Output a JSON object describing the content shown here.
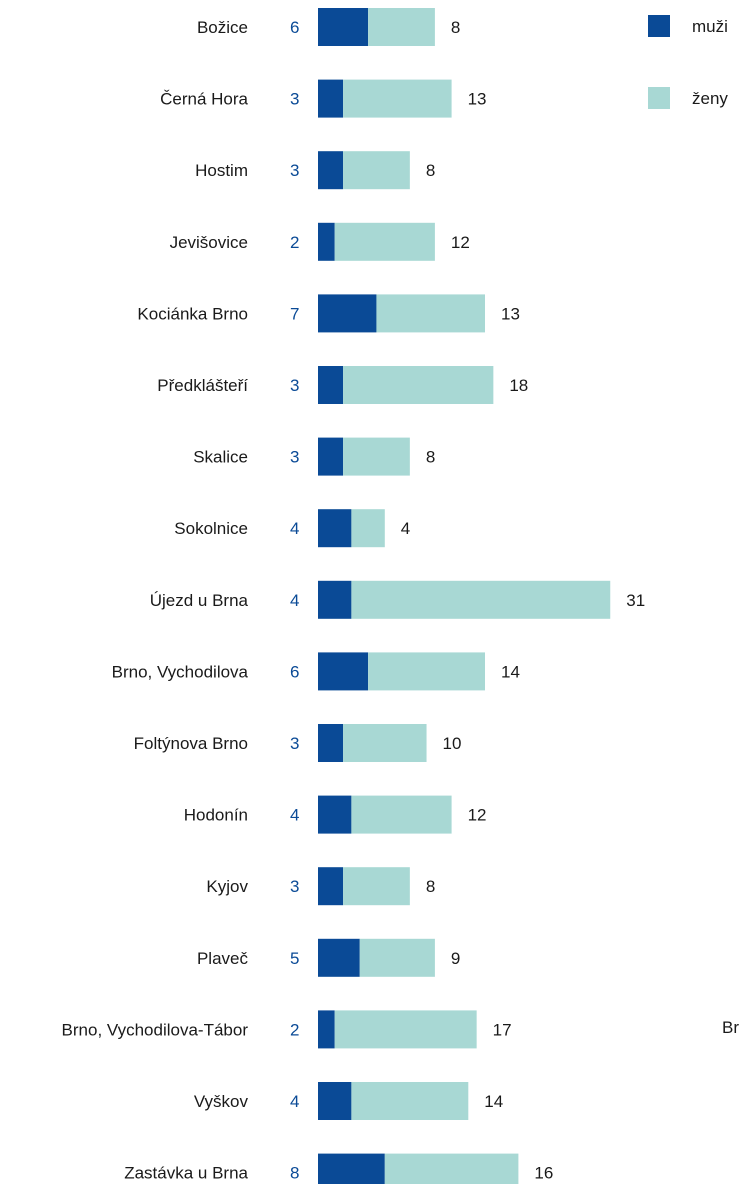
{
  "chart_data": {
    "type": "bar",
    "orientation": "horizontal",
    "stacked": true,
    "categories": [
      "Božice",
      "Černá Hora",
      "Hostim",
      "Jevišovice",
      "Kociánka Brno",
      "Předklášteří",
      "Skalice",
      "Sokolnice",
      "Újezd u Brna",
      "Brno, Vychodilova",
      "Foltýnova Brno",
      "Hodonín",
      "Kyjov",
      "Plaveč",
      "Brno, Vychodilova-Tábor",
      "Vyškov",
      "Zastávka u Brna"
    ],
    "series": [
      {
        "name": "muži",
        "color": "#0a4a96",
        "values": [
          6,
          3,
          3,
          2,
          7,
          3,
          3,
          4,
          4,
          6,
          3,
          4,
          3,
          5,
          2,
          4,
          8
        ]
      },
      {
        "name": "ženy",
        "color": "#a8d8d4",
        "values": [
          8,
          13,
          8,
          12,
          13,
          18,
          8,
          4,
          31,
          14,
          10,
          12,
          8,
          9,
          17,
          14,
          16
        ]
      }
    ],
    "legend": "top-right",
    "grid": false,
    "title": "",
    "xlabel": "",
    "ylabel": ""
  },
  "edge_fragment": "Br"
}
